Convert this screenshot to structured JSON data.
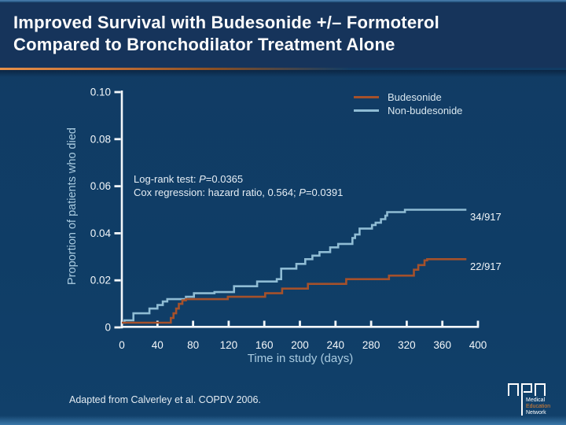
{
  "slide": {
    "title_line1": "Improved Survival with Budesonide +/– Formoterol",
    "title_line2": "Compared to Bronchodilator Treatment Alone",
    "footer": "Adapted from Calverley et al. COPDV 2006."
  },
  "stats": {
    "line1_prefix": "Log-rank test: ",
    "line1_p": "P",
    "line1_suffix": "=0.0365",
    "line2_prefix": "Cox regression: hazard ratio, 0.564; ",
    "line2_p": "P",
    "line2_suffix": "=0.0391"
  },
  "logo": {
    "line1": "Medical",
    "line2": "Education",
    "line3": "Network"
  },
  "colors": {
    "background": "#0F3D66",
    "title_bar": "#16345B",
    "accent_rule": "#C87137",
    "axis": "#F3F7FA",
    "axis_label_blue": "#A9CBE0",
    "budesonide_line": "#A5512B",
    "non_budesonide_line": "#8FBCD4"
  },
  "chart_data": {
    "type": "line",
    "subtype": "kaplan-meier-step",
    "title": "",
    "xlabel": "Time in study (days)",
    "ylabel": "Proportion of patients who died",
    "xlim": [
      0,
      400
    ],
    "ylim": [
      0,
      0.1
    ],
    "x_ticks": [
      0,
      40,
      80,
      120,
      160,
      200,
      240,
      280,
      320,
      360,
      400
    ],
    "y_ticks": [
      0,
      0.02,
      0.04,
      0.06,
      0.08,
      0.1
    ],
    "y_tick_labels": [
      "0",
      "0.02",
      "0.04",
      "0.06",
      "0.08",
      "0.10"
    ],
    "grid": false,
    "legend_position": "top-right",
    "series": [
      {
        "name": "Budesonide",
        "color": "#A5512B",
        "end_label": "22/917",
        "points": [
          [
            0,
            0.002
          ],
          [
            53,
            0.002
          ],
          [
            55,
            0.004
          ],
          [
            58,
            0.006
          ],
          [
            61,
            0.008
          ],
          [
            64,
            0.01
          ],
          [
            68,
            0.0115
          ],
          [
            72,
            0.012
          ],
          [
            119,
            0.013
          ],
          [
            161,
            0.0145
          ],
          [
            180,
            0.0165
          ],
          [
            209,
            0.0185
          ],
          [
            252,
            0.0205
          ],
          [
            300,
            0.022
          ],
          [
            328,
            0.0245
          ],
          [
            333,
            0.0265
          ],
          [
            340,
            0.0285
          ],
          [
            343,
            0.029
          ],
          [
            387,
            0.029
          ]
        ]
      },
      {
        "name": "Non-budesonide",
        "color": "#8FBCD4",
        "end_label": "34/917",
        "points": [
          [
            0,
            0.002
          ],
          [
            3,
            0.003
          ],
          [
            13,
            0.006
          ],
          [
            31,
            0.008
          ],
          [
            40,
            0.0095
          ],
          [
            46,
            0.011
          ],
          [
            51,
            0.012
          ],
          [
            72,
            0.013
          ],
          [
            81,
            0.0145
          ],
          [
            104,
            0.015
          ],
          [
            126,
            0.0175
          ],
          [
            152,
            0.0195
          ],
          [
            174,
            0.0205
          ],
          [
            179,
            0.025
          ],
          [
            196,
            0.027
          ],
          [
            206,
            0.029
          ],
          [
            214,
            0.0305
          ],
          [
            222,
            0.032
          ],
          [
            234,
            0.034
          ],
          [
            243,
            0.0355
          ],
          [
            259,
            0.038
          ],
          [
            262,
            0.0395
          ],
          [
            267,
            0.042
          ],
          [
            281,
            0.0435
          ],
          [
            285,
            0.0445
          ],
          [
            291,
            0.046
          ],
          [
            296,
            0.0475
          ],
          [
            298,
            0.049
          ],
          [
            318,
            0.05
          ],
          [
            387,
            0.05
          ]
        ]
      }
    ]
  }
}
